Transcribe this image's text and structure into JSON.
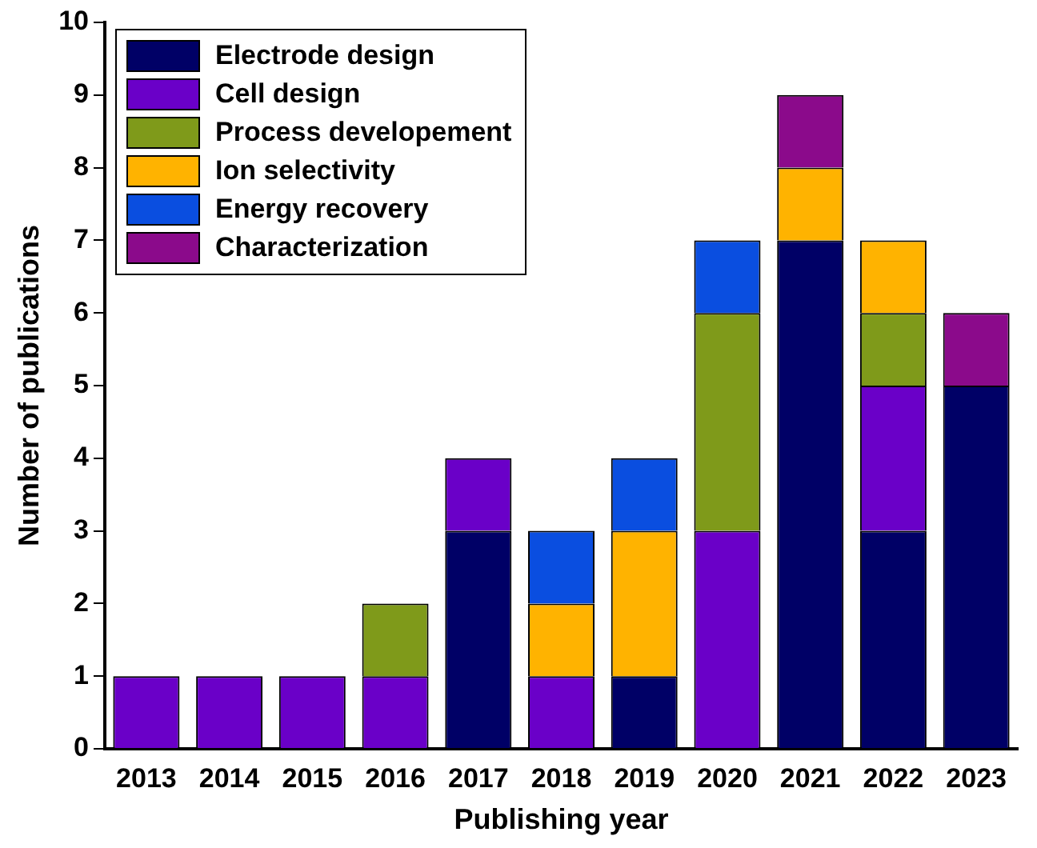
{
  "chart_data": {
    "type": "bar",
    "stacked": true,
    "xlabel": "Publishing year",
    "ylabel": "Number of publications",
    "categories": [
      "2013",
      "2014",
      "2015",
      "2016",
      "2017",
      "2018",
      "2019",
      "2020",
      "2021",
      "2022",
      "2023"
    ],
    "series": [
      {
        "name": "Electrode design",
        "color": "#000066",
        "values": [
          0,
          0,
          0,
          0,
          3,
          0,
          1,
          0,
          7,
          3,
          5
        ]
      },
      {
        "name": "Cell design",
        "color": "#6a00c8",
        "values": [
          1,
          1,
          1,
          1,
          1,
          1,
          0,
          3,
          0,
          2,
          0
        ]
      },
      {
        "name": "Process developement",
        "color": "#7f9a1a",
        "values": [
          0,
          0,
          0,
          1,
          0,
          0,
          0,
          3,
          0,
          1,
          0
        ]
      },
      {
        "name": "Ion selectivity",
        "color": "#ffb300",
        "values": [
          0,
          0,
          0,
          0,
          0,
          1,
          2,
          0,
          1,
          1,
          0
        ]
      },
      {
        "name": "Energy recovery",
        "color": "#0a4ee0",
        "values": [
          0,
          0,
          0,
          0,
          0,
          1,
          1,
          1,
          0,
          0,
          0
        ]
      },
      {
        "name": "Characterization",
        "color": "#8b0a8b",
        "values": [
          0,
          0,
          0,
          0,
          0,
          0,
          0,
          0,
          1,
          0,
          1
        ]
      }
    ],
    "ylim": [
      0,
      10
    ],
    "yticks": [
      0,
      1,
      2,
      3,
      4,
      5,
      6,
      7,
      8,
      9,
      10
    ],
    "grid": false,
    "legend": "top left"
  }
}
